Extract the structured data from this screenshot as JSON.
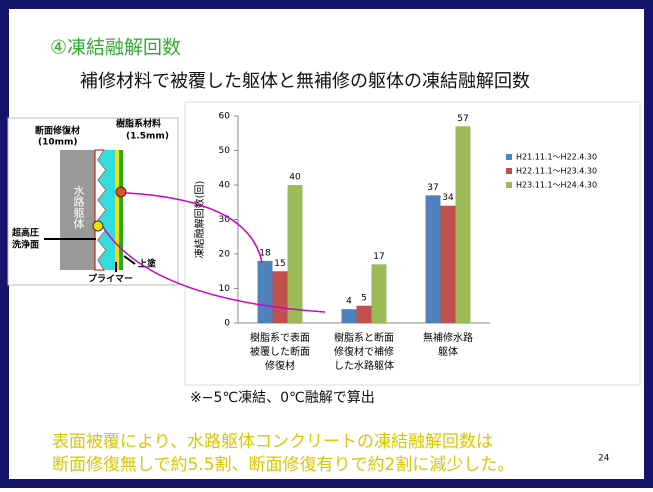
{
  "slide": {
    "heading": "④凍結融解回数",
    "subtitle": "補修材料で被覆した躯体と無補修の躯体の凍結融解回数",
    "diagram": {
      "repair": "断面修復材",
      "repair_thickness": "(10mm)",
      "resin": "樹脂系材料",
      "resin_thickness": "(1.5mm)",
      "body": "水路躯体",
      "wash": "超高圧",
      "wash2": "洗浄面",
      "topcoat": "上塗",
      "primer": "プライマー"
    },
    "note": "※−5℃凍結、0℃融解で算出",
    "conclusion": [
      "表面被覆により、水路躯体コンクリートの凍結融解回数は",
      "断面修復無しで約5.5割、断面修復有りで約2割に減少した。"
    ],
    "page_number": "24"
  },
  "chart_data": {
    "type": "bar",
    "y_label": "凍結融解回数(回)",
    "categories": [
      [
        "樹脂系で表面",
        "被覆した断面",
        "修復材"
      ],
      [
        "樹脂系と断面",
        "修復材で補修",
        "した水路躯体"
      ],
      [
        "無補修水路",
        "躯体"
      ]
    ],
    "series": [
      {
        "name": "H21.11.1〜H22.4.30",
        "color": "#4f81bd",
        "values": [
          18,
          4,
          37
        ]
      },
      {
        "name": "H22.11.1〜H23.4.30",
        "color": "#c0504d",
        "values": [
          15,
          5,
          34
        ]
      },
      {
        "name": "H23.11.1〜H24.4.30",
        "color": "#9bbb59",
        "values": [
          40,
          17,
          57
        ]
      }
    ],
    "ylim": [
      0,
      60
    ],
    "yticks": [
      0,
      10,
      20,
      30,
      40,
      50,
      60
    ],
    "grid": false,
    "legend": "right"
  }
}
